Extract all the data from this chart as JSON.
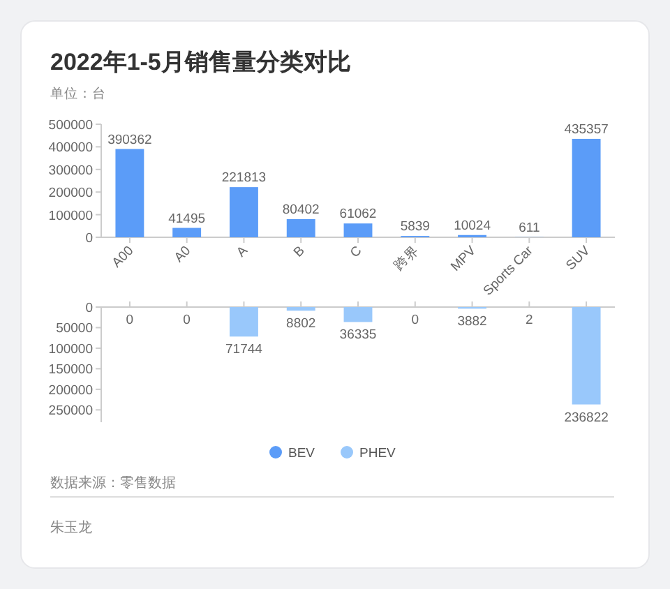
{
  "chart_data": [
    {
      "type": "bar",
      "title": "2022年1-5月销售量分类对比",
      "subtitle": "单位：台",
      "categories": [
        "A00",
        "A0",
        "A",
        "B",
        "C",
        "跨界",
        "MPV",
        "Sports Car",
        "SUV"
      ],
      "series": [
        {
          "name": "BEV",
          "color": "#5b9cf8",
          "values": [
            390362,
            41495,
            221813,
            80402,
            61062,
            5839,
            10024,
            611,
            435357
          ]
        }
      ],
      "ylim": [
        0,
        500000
      ],
      "yticks": [
        0,
        100000,
        200000,
        300000,
        400000,
        500000
      ],
      "data_labels": true,
      "legend": "bottom"
    },
    {
      "type": "bar",
      "categories": [
        null,
        null,
        null,
        null,
        null,
        null,
        null,
        null,
        null
      ],
      "series": [
        {
          "name": "PHEV",
          "color": "#99c8fb",
          "values": [
            0,
            0,
            71744,
            8802,
            36335,
            0,
            3882,
            2,
            236822
          ]
        }
      ],
      "ylim": [
        280000,
        0
      ],
      "yticks": [
        0,
        50000,
        100000,
        150000,
        200000,
        250000
      ],
      "tick_labels": "y",
      "data_labels": true,
      "legend": "bottom",
      "annotations": [
        "数据来源：零售数据",
        "朱玉龙"
      ]
    }
  ]
}
